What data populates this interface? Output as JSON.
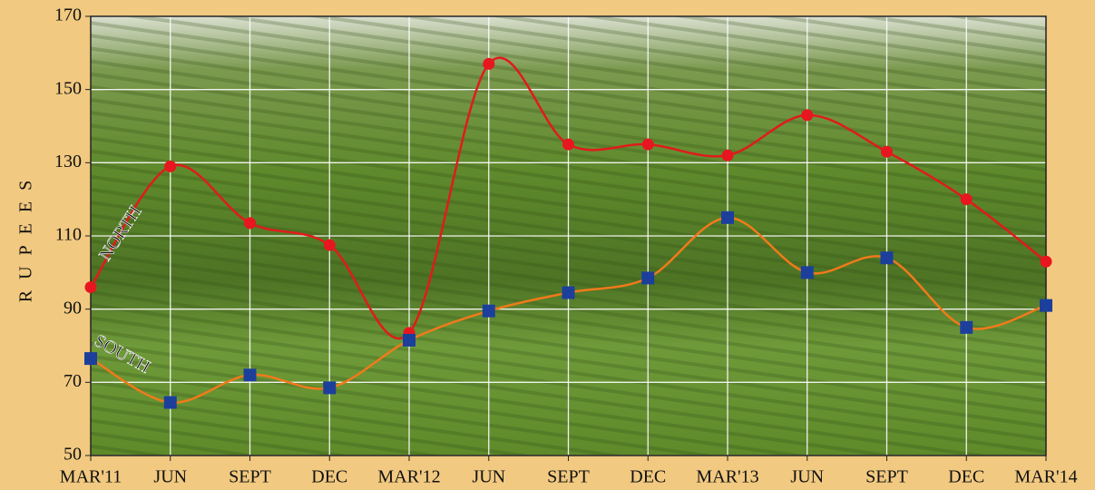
{
  "chart_data": {
    "type": "line",
    "y_label": "RUPEES",
    "categories": [
      "MAR'11",
      "JUN",
      "SEPT",
      "DEC",
      "MAR'12",
      "JUN",
      "SEPT",
      "DEC",
      "MAR'13",
      "JUN",
      "SEPT",
      "DEC",
      "MAR'14"
    ],
    "series": [
      {
        "name": "NORTH",
        "color": "#e01b1b",
        "marker_color": "#e8161e",
        "marker": "circle",
        "values": [
          96,
          129,
          113.5,
          107.5,
          83.5,
          157,
          135,
          135,
          132,
          143,
          133,
          120,
          103
        ]
      },
      {
        "name": "SOUTH",
        "color": "#f07a1a",
        "marker_color": "#1c3f9c",
        "marker": "square",
        "values": [
          76.5,
          64.5,
          72,
          68.5,
          81.5,
          89.5,
          94.5,
          98.5,
          115,
          100,
          104,
          85,
          91
        ]
      }
    ],
    "ylim": [
      50,
      170
    ],
    "yticks": [
      50,
      70,
      90,
      110,
      130,
      150,
      170
    ],
    "grid": true
  }
}
